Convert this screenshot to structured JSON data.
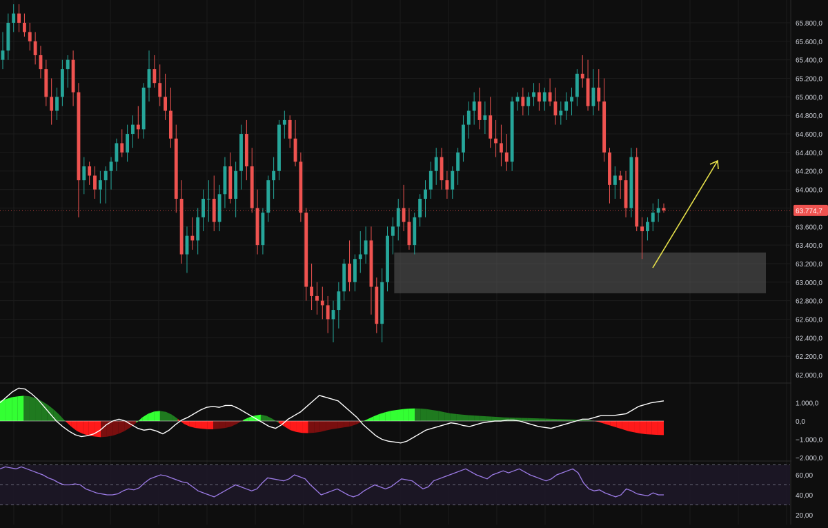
{
  "theme": {
    "background": "#0e0e0e",
    "grid": "#1c1c1c",
    "up_color": "#26a69a",
    "down_color": "#ef5350",
    "axis_text": "#d1d4dc",
    "last_price_color": "#ef5350",
    "zone_color": "#5a5a5a",
    "arrow_color": "#e6e04a",
    "hist_strong_green": "#33ff33",
    "hist_dark_green": "#1f7a1f",
    "hist_strong_red": "#ff1a1a",
    "hist_dark_red": "#7a0f0f",
    "signal_line": "#ffffff",
    "rsi_line": "#9c7be6",
    "rsi_band": "#1d1828"
  },
  "price_axis": {
    "ticks": [
      "65.800,0",
      "65.600,0",
      "65.400,0",
      "65.200,0",
      "65.000,0",
      "64.800,0",
      "64.600,0",
      "64.400,0",
      "64.200,0",
      "64.000,0",
      "63.600,0",
      "63.400,0",
      "63.200,0",
      "63.000,0",
      "62.800,0",
      "62.600,0",
      "62.400,0",
      "62.200,0",
      "62.000,0"
    ],
    "last_price_label": "63.774,7"
  },
  "osc_axis": {
    "ticks": [
      "1.000,0",
      "0,0",
      "−1.000,0",
      "−2.000,0"
    ]
  },
  "rsi_axis": {
    "ticks": [
      "60,00",
      "40,00",
      "20,00"
    ]
  },
  "chart_data": [
    {
      "type": "candlestick",
      "title": "",
      "ylim": [
        61950,
        66000
      ],
      "last_price": 63774.7,
      "support_zone": [
        62880,
        63320
      ],
      "candles": [
        [
          65400,
          65700,
          65300,
          65500
        ],
        [
          65500,
          65900,
          65400,
          65800
        ],
        [
          65800,
          66000,
          65700,
          65900
        ],
        [
          65900,
          66000,
          65700,
          65800
        ],
        [
          65800,
          65900,
          65650,
          65700
        ],
        [
          65700,
          65800,
          65500,
          65600
        ],
        [
          65600,
          65700,
          65350,
          65450
        ],
        [
          65450,
          65550,
          65200,
          65300
        ],
        [
          65300,
          65400,
          64900,
          65000
        ],
        [
          65000,
          65200,
          64700,
          64850
        ],
        [
          64850,
          65100,
          64750,
          65000
        ],
        [
          65000,
          65400,
          64900,
          65300
        ],
        [
          65300,
          65450,
          65100,
          65400
        ],
        [
          65400,
          65500,
          64900,
          65050
        ],
        [
          65050,
          65150,
          63700,
          64100
        ],
        [
          64100,
          64350,
          63950,
          64250
        ],
        [
          64250,
          64300,
          64050,
          64150
        ],
        [
          64150,
          64250,
          63900,
          64000
        ],
        [
          64000,
          64200,
          63850,
          64100
        ],
        [
          64100,
          64250,
          63850,
          64200
        ],
        [
          64200,
          64350,
          64000,
          64300
        ],
        [
          64300,
          64550,
          64200,
          64500
        ],
        [
          64500,
          64650,
          64350,
          64400
        ],
        [
          64400,
          64700,
          64300,
          64600
        ],
        [
          64600,
          64800,
          64450,
          64700
        ],
        [
          64700,
          64900,
          64550,
          64650
        ],
        [
          64650,
          65150,
          64550,
          65100
        ],
        [
          65100,
          65500,
          64950,
          65300
        ],
        [
          65300,
          65450,
          65100,
          65150
        ],
        [
          65150,
          65350,
          64900,
          65000
        ],
        [
          65000,
          65250,
          64750,
          64850
        ],
        [
          64850,
          65100,
          64450,
          64550
        ],
        [
          64550,
          64700,
          63750,
          63900
        ],
        [
          63900,
          64100,
          63200,
          63300
        ],
        [
          63300,
          63600,
          63100,
          63500
        ],
        [
          63500,
          63700,
          63350,
          63450
        ],
        [
          63450,
          63800,
          63300,
          63700
        ],
        [
          63700,
          64000,
          63550,
          63900
        ],
        [
          63900,
          64100,
          63650,
          63900
        ],
        [
          63900,
          64150,
          63550,
          63650
        ],
        [
          63650,
          64050,
          63550,
          63950
        ],
        [
          63950,
          64350,
          63800,
          64250
        ],
        [
          64250,
          64400,
          63850,
          63900
        ],
        [
          63900,
          64300,
          63700,
          64200
        ],
        [
          64200,
          64700,
          64000,
          64600
        ],
        [
          64600,
          64750,
          64100,
          64250
        ],
        [
          64250,
          64450,
          63750,
          63800
        ],
        [
          63800,
          64000,
          63300,
          63400
        ],
        [
          63400,
          63800,
          63300,
          63750
        ],
        [
          63750,
          64150,
          63650,
          64100
        ],
        [
          64100,
          64350,
          63900,
          64200
        ],
        [
          64200,
          64750,
          64100,
          64700
        ],
        [
          64700,
          64850,
          64550,
          64750
        ],
        [
          64750,
          64800,
          64450,
          64550
        ],
        [
          64550,
          64750,
          64250,
          64300
        ],
        [
          64300,
          64400,
          63650,
          63750
        ],
        [
          63750,
          63800,
          62800,
          62950
        ],
        [
          62950,
          63200,
          62700,
          62850
        ],
        [
          62850,
          63000,
          62650,
          62800
        ],
        [
          62800,
          62950,
          62600,
          62750
        ],
        [
          62750,
          62850,
          62450,
          62600
        ],
        [
          62600,
          62800,
          62350,
          62700
        ],
        [
          62700,
          63000,
          62500,
          62900
        ],
        [
          62900,
          63250,
          62800,
          63200
        ],
        [
          63200,
          63450,
          62900,
          63000
        ],
        [
          63000,
          63300,
          62900,
          63250
        ],
        [
          63250,
          63550,
          63100,
          63300
        ],
        [
          63300,
          63600,
          63200,
          63450
        ],
        [
          63450,
          63600,
          62650,
          62950
        ],
        [
          62950,
          63050,
          62450,
          62550
        ],
        [
          62550,
          63150,
          62350,
          63000
        ],
        [
          63000,
          63600,
          62900,
          63500
        ],
        [
          63500,
          63700,
          63300,
          63600
        ],
        [
          63600,
          63900,
          63450,
          63800
        ],
        [
          63800,
          64050,
          63550,
          63650
        ],
        [
          63650,
          63800,
          63350,
          63400
        ],
        [
          63400,
          63750,
          63300,
          63700
        ],
        [
          63700,
          63950,
          63600,
          63900
        ],
        [
          63900,
          64100,
          63700,
          64000
        ],
        [
          64000,
          64300,
          63900,
          64200
        ],
        [
          64200,
          64450,
          64050,
          64350
        ],
        [
          64350,
          64450,
          64000,
          64100
        ],
        [
          64100,
          64200,
          63900,
          64000
        ],
        [
          64000,
          64250,
          63900,
          64200
        ],
        [
          64200,
          64450,
          64050,
          64400
        ],
        [
          64400,
          64800,
          64300,
          64700
        ],
        [
          64700,
          64950,
          64550,
          64850
        ],
        [
          64850,
          65050,
          64700,
          64950
        ],
        [
          64950,
          65100,
          64650,
          64750
        ],
        [
          64750,
          64950,
          64600,
          64800
        ],
        [
          64800,
          65000,
          64450,
          64550
        ],
        [
          64550,
          64750,
          64350,
          64500
        ],
        [
          64500,
          64700,
          64250,
          64400
        ],
        [
          64400,
          64600,
          64200,
          64300
        ],
        [
          64300,
          65000,
          64200,
          64950
        ],
        [
          64950,
          65050,
          64850,
          65000
        ],
        [
          65000,
          65100,
          64800,
          64900
        ],
        [
          64900,
          65050,
          64800,
          65000
        ],
        [
          65000,
          65150,
          64900,
          65050
        ],
        [
          65050,
          65150,
          64850,
          64950
        ],
        [
          64950,
          65100,
          64850,
          65050
        ],
        [
          65050,
          65200,
          64900,
          64950
        ],
        [
          64950,
          65100,
          64700,
          64800
        ],
        [
          64800,
          64950,
          64700,
          64850
        ],
        [
          64850,
          65050,
          64750,
          64950
        ],
        [
          64950,
          65100,
          64800,
          65000
        ],
        [
          65000,
          65300,
          64900,
          65250
        ],
        [
          65250,
          65450,
          65100,
          65200
        ],
        [
          65200,
          65400,
          64850,
          64900
        ],
        [
          64900,
          65300,
          64800,
          65100
        ],
        [
          65100,
          65300,
          64850,
          64950
        ],
        [
          64950,
          65200,
          64300,
          64400
        ],
        [
          64400,
          64450,
          63850,
          64050
        ],
        [
          64050,
          64250,
          63900,
          64150
        ],
        [
          64150,
          64200,
          63900,
          64100
        ],
        [
          64100,
          64200,
          63700,
          63800
        ],
        [
          63800,
          64450,
          63700,
          64350
        ],
        [
          64350,
          64450,
          63550,
          63600
        ],
        [
          63600,
          63700,
          63250,
          63550
        ],
        [
          63550,
          63700,
          63450,
          63650
        ],
        [
          63650,
          63850,
          63550,
          63750
        ],
        [
          63750,
          63900,
          63650,
          63800
        ],
        [
          63800,
          63850,
          63750,
          63775
        ]
      ]
    },
    {
      "type": "area",
      "title": "",
      "ylim": [
        -2000,
        1800
      ],
      "histogram": [
        1100,
        1200,
        1300,
        1350,
        1380,
        1350,
        1250,
        1100,
        900,
        650,
        350,
        0,
        -300,
        -550,
        -700,
        -800,
        -850,
        -880,
        -860,
        -800,
        -700,
        -550,
        -350,
        -100,
        200,
        400,
        520,
        550,
        500,
        350,
        120,
        -150,
        -300,
        -380,
        -420,
        -450,
        -450,
        -420,
        -380,
        -300,
        -150,
        50,
        200,
        300,
        350,
        280,
        120,
        -100,
        -300,
        -500,
        -600,
        -650,
        -660,
        -640,
        -600,
        -520,
        -450,
        -400,
        -350,
        -300,
        -200,
        -50,
        100,
        250,
        380,
        480,
        560,
        610,
        650,
        680,
        690,
        680,
        650,
        600,
        550,
        480,
        420,
        380,
        350,
        320,
        300,
        280,
        260,
        240,
        220,
        200,
        190,
        180,
        170,
        160,
        150,
        140,
        130,
        120,
        110,
        100,
        90,
        80,
        70,
        50,
        20,
        -50,
        -150,
        -250,
        -350,
        -450,
        -550,
        -620,
        -680,
        -720,
        -740,
        -760,
        -770
      ],
      "signal_line": [
        1000,
        1300,
        1600,
        1800,
        1750,
        1500,
        1200,
        800,
        400,
        0,
        -300,
        -550,
        -750,
        -850,
        -800,
        -700,
        -500,
        -200,
        0,
        100,
        0,
        -200,
        -400,
        -500,
        -450,
        -550,
        -700,
        -500,
        -200,
        50,
        200,
        400,
        600,
        750,
        800,
        750,
        850,
        850,
        700,
        500,
        300,
        100,
        -100,
        -300,
        -400,
        -200,
        100,
        300,
        500,
        800,
        1100,
        1400,
        1300,
        1200,
        1100,
        800,
        500,
        200,
        -200,
        -500,
        -800,
        -1000,
        -1100,
        -1150,
        -1200,
        -1100,
        -900,
        -700,
        -500,
        -400,
        -300,
        -200,
        -100,
        -150,
        -250,
        -300,
        -200,
        -100,
        -50,
        0,
        0,
        50,
        50,
        0,
        -100,
        -200,
        -300,
        -350,
        -400,
        -300,
        -200,
        -100,
        0,
        100,
        100,
        200,
        300,
        300,
        300,
        350,
        400,
        600,
        800,
        900,
        1000,
        1050,
        1100
      ],
      "zero": 0
    },
    {
      "type": "line",
      "title": "",
      "ylim": [
        18,
        72
      ],
      "bands": [
        30,
        50,
        70
      ],
      "values": [
        66,
        68,
        67,
        66,
        68,
        66,
        64,
        62,
        60,
        57,
        55,
        52,
        50,
        50,
        51,
        50,
        46,
        44,
        42,
        41,
        40,
        40,
        41,
        44,
        46,
        45,
        47,
        52,
        56,
        58,
        60,
        59,
        57,
        55,
        53,
        52,
        48,
        44,
        42,
        40,
        38,
        41,
        44,
        47,
        50,
        48,
        46,
        44,
        46,
        52,
        57,
        56,
        55,
        54,
        56,
        60,
        58,
        56,
        50,
        45,
        40,
        42,
        44,
        46,
        43,
        40,
        38,
        40,
        44,
        47,
        50,
        48,
        46,
        48,
        52,
        56,
        55,
        54,
        50,
        46,
        48,
        54,
        56,
        58,
        60,
        62,
        64,
        66,
        63,
        60,
        58,
        56,
        60,
        62,
        64,
        62,
        64,
        66,
        63,
        60,
        58,
        56,
        54,
        56,
        60,
        62,
        64,
        66,
        62,
        52,
        46,
        44,
        45,
        42,
        40,
        38,
        40,
        46,
        44,
        41,
        40,
        39,
        42,
        40,
        40
      ]
    }
  ]
}
